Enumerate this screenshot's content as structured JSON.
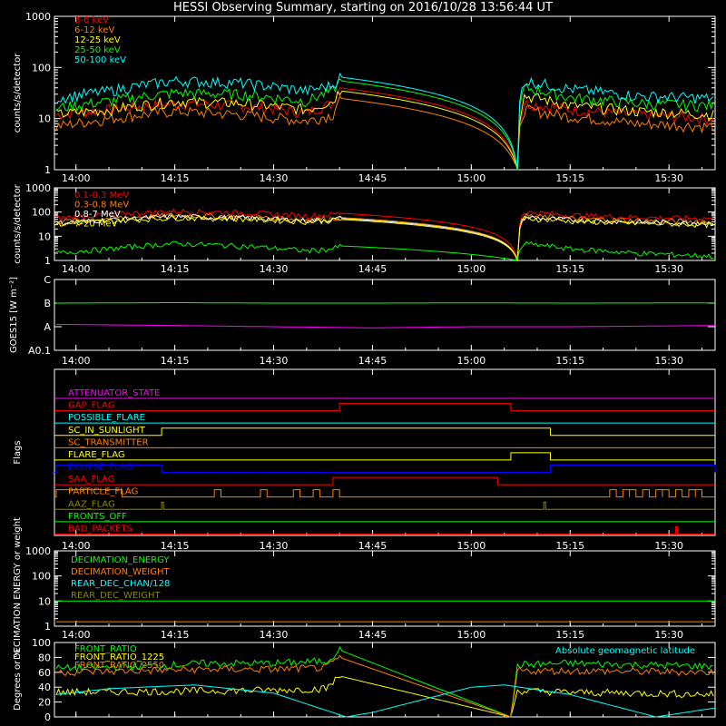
{
  "chart_data": {
    "title": "HESSI Observing Summary, starting on 2016/10/28 13:56:44 UT",
    "time_axis": {
      "start": "13:56:44",
      "end": "15:37:00",
      "tick_labels": [
        "14:00",
        "14:15",
        "14:30",
        "14:45",
        "15:00",
        "15:15",
        "15:30"
      ],
      "tick_times": [
        "14:00",
        "14:15",
        "14:30",
        "14:45",
        "15:00",
        "15:15",
        "15:30"
      ]
    },
    "data_gap": {
      "start": "14:40",
      "end": "15:07"
    },
    "panels": [
      {
        "id": "lowenergy",
        "type": "line",
        "ylabel": "counts/s/detector",
        "yscale": "log",
        "ylim": [
          1,
          1000
        ],
        "ytick_labels": [
          "1",
          "10",
          "100",
          "1000"
        ],
        "ytick_values": [
          1,
          10,
          100,
          1000
        ],
        "series": [
          {
            "name": "3-6 keV",
            "color": "#ff0000",
            "x": [
              "13:57",
              "14:05",
              "14:15",
              "14:25",
              "14:35",
              "14:39",
              "14:40",
              "15:07",
              "15:08",
              "15:15",
              "15:25",
              "15:37"
            ],
            "y": [
              12,
              15,
              20,
              18,
              13,
              20,
              40,
              1,
              20,
              15,
              12,
              10
            ]
          },
          {
            "name": "6-12 keV",
            "color": "#ff8000",
            "x": [
              "13:57",
              "14:05",
              "14:15",
              "14:25",
              "14:35",
              "14:39",
              "14:40",
              "15:07",
              "15:08",
              "15:15",
              "15:25",
              "15:37"
            ],
            "y": [
              7,
              10,
              14,
              12,
              9,
              12,
              25,
              1,
              15,
              11,
              8,
              7
            ]
          },
          {
            "name": "12-25 keV",
            "color": "#ffff00",
            "x": [
              "13:57",
              "14:05",
              "14:15",
              "14:25",
              "14:35",
              "14:39",
              "14:40",
              "15:07",
              "15:08",
              "15:15",
              "15:25",
              "15:37"
            ],
            "y": [
              12,
              15,
              22,
              20,
              15,
              22,
              35,
              1,
              28,
              18,
              14,
              12
            ]
          },
          {
            "name": "25-50 keV",
            "color": "#00ff00",
            "x": [
              "13:57",
              "14:05",
              "14:15",
              "14:25",
              "14:35",
              "14:39",
              "14:40",
              "15:07",
              "15:08",
              "15:15",
              "15:25",
              "15:37"
            ],
            "y": [
              16,
              22,
              32,
              30,
              22,
              35,
              55,
              1,
              40,
              26,
              20,
              18
            ]
          },
          {
            "name": "50-100 keV",
            "color": "#00ffff",
            "x": [
              "13:57",
              "14:05",
              "14:15",
              "14:25",
              "14:35",
              "14:39",
              "14:40",
              "15:07",
              "15:08",
              "15:15",
              "15:25",
              "15:37"
            ],
            "y": [
              25,
              35,
              55,
              50,
              35,
              45,
              65,
              1,
              55,
              38,
              28,
              25
            ]
          }
        ]
      },
      {
        "id": "highenergy",
        "type": "line",
        "ylabel": "counts/s/detector",
        "yscale": "log",
        "ylim": [
          1,
          1000
        ],
        "ytick_labels": [
          "1",
          "10",
          "100",
          "1000"
        ],
        "ytick_values": [
          1,
          10,
          100,
          1000
        ],
        "series": [
          {
            "name": "0.1-0.3 MeV",
            "color": "#ff0000",
            "x": [
              "13:57",
              "14:05",
              "14:15",
              "14:25",
              "14:35",
              "14:39",
              "14:40",
              "15:07",
              "15:08",
              "15:15",
              "15:25",
              "15:37"
            ],
            "y": [
              55,
              80,
              110,
              95,
              70,
              80,
              90,
              1,
              100,
              75,
              60,
              55
            ]
          },
          {
            "name": "0.3-0.8 MeV",
            "color": "#ff8000",
            "x": [
              "13:57",
              "14:05",
              "14:15",
              "14:25",
              "14:35",
              "14:39",
              "14:40",
              "15:07",
              "15:08",
              "15:15",
              "15:25",
              "15:37"
            ],
            "y": [
              40,
              55,
              75,
              65,
              50,
              55,
              60,
              1,
              70,
              55,
              45,
              40
            ]
          },
          {
            "name": "0.8-7 MeV",
            "color": "#ffffff",
            "x": [
              "13:57",
              "14:05",
              "14:15",
              "14:25",
              "14:35",
              "14:39",
              "14:40",
              "15:07",
              "15:08",
              "15:15",
              "15:25",
              "15:37"
            ],
            "y": [
              35,
              48,
              65,
              58,
              45,
              50,
              55,
              1,
              60,
              48,
              38,
              35
            ]
          },
          {
            "name": "7-20 MeV",
            "color": "#ffff00",
            "x": [
              "13:57",
              "14:05",
              "14:15",
              "14:25",
              "14:35",
              "14:39",
              "14:40",
              "15:07",
              "15:08",
              "15:15",
              "15:25",
              "15:37"
            ],
            "y": [
              30,
              42,
              58,
              52,
              40,
              45,
              50,
              1,
              55,
              42,
              34,
              30
            ]
          },
          {
            "name": "",
            "color": "#00ff00",
            "x": [
              "13:57",
              "14:05",
              "14:15",
              "14:25",
              "14:35",
              "14:39",
              "14:40",
              "15:07",
              "15:08",
              "15:15",
              "15:25",
              "15:37"
            ],
            "y": [
              2,
              3,
              5,
              4,
              2.5,
              3,
              4,
              1,
              5,
              3,
              2,
              1.5
            ]
          }
        ]
      },
      {
        "id": "goes",
        "type": "line",
        "ylabel": "GOES15 [W m⁻²]",
        "yscale": "category",
        "ytick_labels": [
          "A0.1",
          "A",
          "B",
          "C"
        ],
        "ytick_values": [
          0,
          1,
          2,
          3
        ],
        "ylim": [
          0,
          3
        ],
        "series": [
          {
            "name": "",
            "color": "#00ff00",
            "x": [
              "13:57",
              "14:15",
              "14:30",
              "14:45",
              "15:00",
              "15:15",
              "15:37"
            ],
            "y": [
              2.0,
              2.02,
              2.0,
              2.0,
              2.01,
              2.0,
              2.01
            ]
          },
          {
            "name": "",
            "color": "#ff00ff",
            "x": [
              "13:57",
              "14:15",
              "14:30",
              "14:45",
              "15:00",
              "15:15",
              "15:37"
            ],
            "y": [
              1.1,
              1.05,
              1.0,
              0.95,
              1.0,
              1.0,
              1.05
            ]
          }
        ]
      },
      {
        "id": "flags",
        "type": "step",
        "ylabel": "Flags",
        "series": [
          {
            "name": "ATTENUATOR_STATE",
            "color": "#ff00ff",
            "segments": []
          },
          {
            "name": "GAP_FLAG",
            "color": "#ff0000",
            "segments": [
              [
                "14:40",
                "15:06"
              ]
            ]
          },
          {
            "name": "POSSIBLE_FLARE",
            "color": "#00ffff",
            "segments": []
          },
          {
            "name": "SC_IN_SUNLIGHT",
            "color": "#ffff00",
            "segments": [
              [
                "14:13",
                "15:12"
              ]
            ]
          },
          {
            "name": "SC_TRANSMITTER",
            "color": "#ff8000",
            "segments": []
          },
          {
            "name": "FLARE_FLAG",
            "color": "#ffff00",
            "segments": [
              [
                "15:06",
                "15:12"
              ]
            ]
          },
          {
            "name": "ECLIPSE_FLAG",
            "color": "#0000ff",
            "segments": [
              [
                "13:57",
                "14:13"
              ],
              [
                "15:12",
                "15:37"
              ]
            ]
          },
          {
            "name": "SAA_FLAG",
            "color": "#ff0000",
            "segments": [
              [
                "14:39",
                "15:04"
              ]
            ]
          },
          {
            "name": "PARTICLE_FLAG",
            "color": "#ff8000",
            "segments": [
              [
                "13:57",
                "14:07"
              ],
              [
                "14:21",
                "14:22"
              ],
              [
                "14:28",
                "14:29"
              ],
              [
                "14:33",
                "14:34"
              ],
              [
                "14:36",
                "14:37"
              ],
              [
                "14:39",
                "14:40"
              ],
              [
                "15:21",
                "15:22"
              ],
              [
                "15:23",
                "15:24"
              ],
              [
                "15:24",
                "15:25"
              ],
              [
                "15:26",
                "15:27"
              ],
              [
                "15:28",
                "15:29"
              ],
              [
                "15:29",
                "15:30"
              ],
              [
                "15:31",
                "15:32"
              ],
              [
                "15:33",
                "15:34"
              ],
              [
                "15:34",
                "15:35"
              ]
            ]
          },
          {
            "name": "AAZ_FLAG",
            "color": "#888800",
            "segments": [
              [
                "14:13",
                "14:13"
              ],
              [
                "15:11",
                "15:11"
              ]
            ]
          },
          {
            "name": "FRONTS_OFF",
            "color": "#00ff00",
            "segments": []
          },
          {
            "name": "BAD_PACKETS",
            "color": "#ff0000",
            "segments": [
              [
                "15:31",
                "15:31"
              ]
            ]
          }
        ]
      },
      {
        "id": "decimation",
        "type": "line",
        "ylabel": "DECIMATION ENERGY or weight",
        "yscale": "log",
        "ylim": [
          1,
          1000
        ],
        "ytick_labels": [
          "1",
          "10",
          "100",
          "1000"
        ],
        "ytick_values": [
          1,
          10,
          100,
          1000
        ],
        "series": [
          {
            "name": "DECIMATION_ENERGY",
            "color": "#00ff00",
            "x": [
              "13:57",
              "15:37"
            ],
            "y": [
              10,
              10
            ]
          },
          {
            "name": "DECIMATION_WEIGHT",
            "color": "#ff8000",
            "x": [
              "13:57",
              "15:37"
            ],
            "y": [
              1.5,
              1.5
            ]
          },
          {
            "name": "REAR_DEC_CHAN/128",
            "color": "#00ffff",
            "x": [],
            "y": []
          },
          {
            "name": "REAR_DEC_WEIGHT",
            "color": "#888800",
            "x": [],
            "y": []
          }
        ]
      },
      {
        "id": "ratio",
        "type": "line",
        "ylabel": "Degrees or %",
        "ylim": [
          0,
          100
        ],
        "ytick_labels": [
          "0",
          "20",
          "40",
          "60",
          "80",
          "100"
        ],
        "ytick_values": [
          0,
          20,
          40,
          60,
          80,
          100
        ],
        "annotation": "Absolute geomagnetic latitude",
        "series": [
          {
            "name": "FRONT_RATIO",
            "color": "#00ff00",
            "x": [
              "13:57",
              "14:10",
              "14:20",
              "14:30",
              "14:38",
              "14:40",
              "15:06",
              "15:07",
              "15:15",
              "15:25",
              "15:37"
            ],
            "y": [
              65,
              68,
              72,
              72,
              75,
              90,
              0,
              70,
              72,
              70,
              68
            ]
          },
          {
            "name": "FRONT_RATIO_1225",
            "color": "#ffff00",
            "x": [
              "13:57",
              "14:10",
              "14:20",
              "14:30",
              "14:38",
              "14:40",
              "15:06",
              "15:07",
              "15:15",
              "15:25",
              "15:37"
            ],
            "y": [
              33,
              34,
              35,
              36,
              38,
              55,
              0,
              35,
              33,
              32,
              30
            ]
          },
          {
            "name": "FRONT_RATIO_2550",
            "color": "#ff8000",
            "x": [
              "13:57",
              "14:10",
              "14:20",
              "14:30",
              "14:38",
              "14:40",
              "15:06",
              "15:07",
              "15:15",
              "15:25",
              "15:37"
            ],
            "y": [
              60,
              62,
              64,
              64,
              66,
              80,
              0,
              62,
              62,
              61,
              60
            ]
          },
          {
            "name": "Absolute geomagnetic latitude",
            "color": "#00ffff",
            "x": [
              "13:57",
              "14:05",
              "14:18",
              "14:30",
              "14:41",
              "14:45",
              "15:00",
              "15:05",
              "15:15",
              "15:28",
              "15:37"
            ],
            "y": [
              30,
              38,
              43,
              32,
              0,
              6,
              40,
              43,
              30,
              0,
              12
            ]
          }
        ]
      }
    ]
  }
}
